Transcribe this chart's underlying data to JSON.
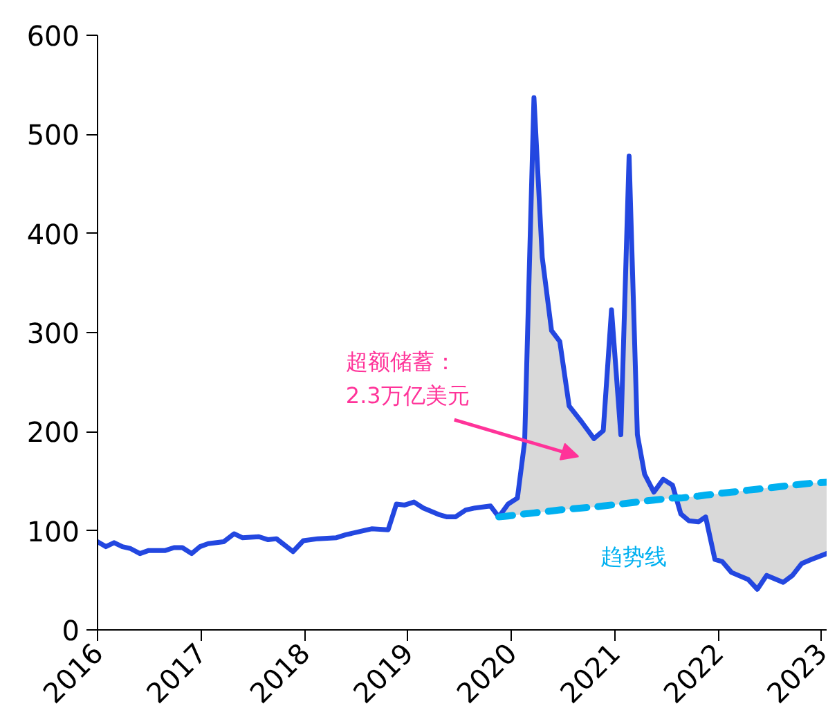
{
  "chart_data": {
    "type": "line",
    "xlim": [
      2016,
      2023.05
    ],
    "xticks": [
      2016,
      2017,
      2018,
      2019,
      2020,
      2021,
      2022,
      2023
    ],
    "ylim": [
      0,
      600
    ],
    "yticks": [
      0,
      100,
      200,
      300,
      400,
      500,
      600
    ],
    "grid": false,
    "legend": false,
    "marker": "none",
    "series": [
      {
        "color": "#2347e0",
        "line_style": "solid",
        "x": [
          2016.0,
          2016.08,
          2016.16,
          2016.24,
          2016.32,
          2016.41,
          2016.49,
          2016.65,
          2016.74,
          2016.82,
          2016.91,
          2016.99,
          2017.07,
          2017.22,
          2017.32,
          2017.4,
          2017.56,
          2017.65,
          2017.73,
          2017.89,
          2017.99,
          2018.13,
          2018.31,
          2018.4,
          2018.65,
          2018.81,
          2018.89,
          2018.97,
          2019.06,
          2019.15,
          2019.31,
          2019.38,
          2019.46,
          2019.56,
          2019.65,
          2019.8,
          2019.88,
          2019.97,
          2020.06,
          2020.13,
          2020.22,
          2020.3,
          2020.39,
          2020.47,
          2020.56,
          2020.68,
          2020.8,
          2020.89,
          2020.97,
          2021.06,
          2021.14,
          2021.22,
          2021.29,
          2021.38,
          2021.47,
          2021.56,
          2021.64,
          2021.72,
          2021.81,
          2021.88,
          2021.97,
          2022.04,
          2022.13,
          2022.22,
          2022.29,
          2022.38,
          2022.47,
          2022.63,
          2022.72,
          2022.81,
          2022.9,
          2023.05
        ],
        "values": [
          89,
          84,
          88,
          84,
          82,
          77,
          80,
          80,
          83,
          83,
          77,
          84,
          87,
          89,
          97,
          93,
          94,
          91,
          92,
          79,
          90,
          92,
          93,
          96,
          102,
          101,
          127,
          126,
          129,
          123,
          116,
          114,
          114,
          121,
          123,
          125,
          114,
          127,
          133,
          190,
          537,
          376,
          302,
          291,
          226,
          210,
          193,
          201,
          323,
          197,
          478,
          197,
          157,
          139,
          152,
          146,
          117,
          110,
          109,
          114,
          71,
          69,
          58,
          54,
          51,
          41,
          55,
          48,
          55,
          67,
          71,
          77
        ]
      },
      {
        "name": "趋势线",
        "color": "#00b0f0",
        "line_style": "dashed",
        "x": [
          2019.88,
          2019.97,
          2020.06,
          2020.13,
          2020.22,
          2020.3,
          2020.39,
          2020.47,
          2020.56,
          2020.68,
          2020.8,
          2020.89,
          2020.97,
          2021.06,
          2021.14,
          2021.22,
          2021.29,
          2021.38,
          2021.47,
          2021.56,
          2021.64,
          2021.72,
          2021.81,
          2021.88,
          2021.97,
          2022.04,
          2022.13,
          2022.22,
          2022.29,
          2022.38,
          2022.47,
          2022.63,
          2022.72,
          2022.81,
          2022.9,
          2023.05
        ],
        "values": [
          114,
          115,
          116,
          117,
          118,
          119,
          120,
          121,
          122,
          123,
          124,
          125,
          126,
          127,
          128,
          129,
          130,
          131,
          132,
          133,
          133,
          134,
          135,
          136,
          137,
          138,
          139,
          140,
          141,
          142,
          143,
          145,
          146,
          147,
          148,
          149
        ],
        "lower": [
          114,
          115,
          116,
          117,
          118,
          119,
          120,
          121,
          122,
          123,
          124,
          125,
          126,
          127,
          128,
          129,
          130,
          131,
          132,
          133,
          133,
          134,
          135,
          136,
          137,
          138,
          139,
          140,
          141,
          142,
          143,
          145,
          146,
          147,
          148,
          149
        ],
        "upper": [
          114,
          127,
          133,
          190,
          537,
          376,
          302,
          291,
          226,
          210,
          193,
          201,
          323,
          197,
          478,
          197,
          157,
          139,
          152,
          146,
          117,
          110,
          109,
          114,
          71,
          69,
          58,
          54,
          51,
          41,
          55,
          48,
          55,
          67,
          71,
          77
        ]
      }
    ],
    "annotations": [
      "超额储蓄：\n2.3万亿美元"
    ]
  }
}
